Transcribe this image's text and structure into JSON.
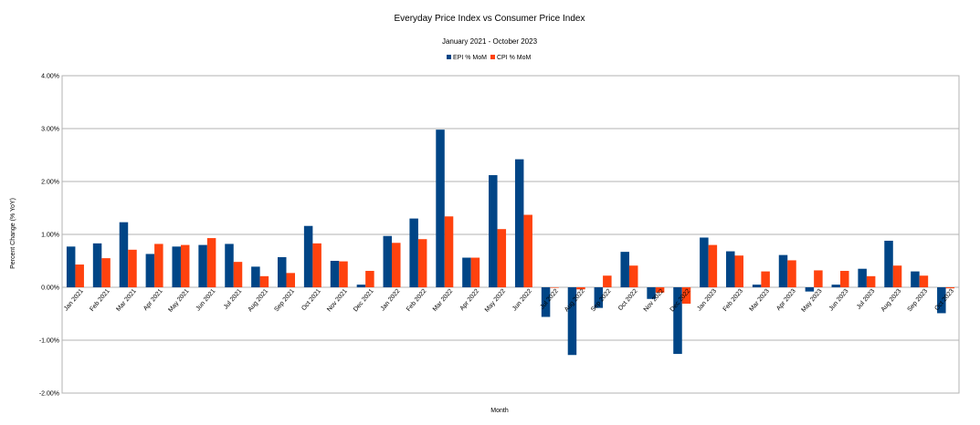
{
  "chart_data": {
    "type": "bar",
    "title": "Everyday Price Index vs Consumer Price Index",
    "subtitle": "January 2021 - October 2023",
    "xlabel": "Month",
    "ylabel": "Percent Change (% YoY)",
    "ylim": [
      -2.0,
      4.0
    ],
    "yticks": [
      4.0,
      3.0,
      2.0,
      1.0,
      0.0,
      -1.0,
      -2.0
    ],
    "ytick_labels": [
      "4.00%",
      "3.00%",
      "2.00%",
      "1.00%",
      "0.00%",
      "-1.00%",
      "-2.00%"
    ],
    "grid": true,
    "legend_position": "top-center",
    "categories": [
      "Jan 2021",
      "Feb 2021",
      "Mar 2021",
      "Apr 2021",
      "May 2021",
      "Jun 2021",
      "Jul 2021",
      "Aug 2021",
      "Sep 2021",
      "Oct 2021",
      "Nov 2021",
      "Dec 2021",
      "Jan 2022",
      "Feb 2022",
      "Mar 2022",
      "Apr 2022",
      "May 2022",
      "Jun 2022",
      "Jul 2022",
      "Aug 2022",
      "Sep 2022",
      "Oct 2022",
      "Nov 2022",
      "Dec 2022",
      "Jan 2023",
      "Feb 2023",
      "Mar 2023",
      "Apr 2023",
      "May 2023",
      "Jun 2023",
      "Jul 2023",
      "Aug 2023",
      "Sep 2023",
      "Oct 2023"
    ],
    "series": [
      {
        "name": "EPI % MoM",
        "color": "#004586",
        "values": [
          0.77,
          0.83,
          1.23,
          0.63,
          0.77,
          0.8,
          0.82,
          0.39,
          0.57,
          1.16,
          0.5,
          0.05,
          0.97,
          1.3,
          2.98,
          0.56,
          2.12,
          2.42,
          -0.56,
          -1.28,
          -0.39,
          0.67,
          -0.22,
          -1.26,
          0.94,
          0.68,
          0.05,
          0.61,
          -0.08,
          0.05,
          0.35,
          0.88,
          0.3,
          -0.49
        ]
      },
      {
        "name": "CPI % MoM",
        "color": "#ff420e",
        "values": [
          0.43,
          0.55,
          0.71,
          0.82,
          0.8,
          0.93,
          0.48,
          0.21,
          0.27,
          0.83,
          0.49,
          0.31,
          0.84,
          0.91,
          1.34,
          0.56,
          1.1,
          1.37,
          -0.01,
          -0.04,
          0.22,
          0.41,
          -0.1,
          -0.31,
          0.8,
          0.6,
          0.3,
          0.51,
          0.32,
          0.31,
          0.21,
          0.41,
          0.22,
          -0.02
        ]
      }
    ]
  }
}
